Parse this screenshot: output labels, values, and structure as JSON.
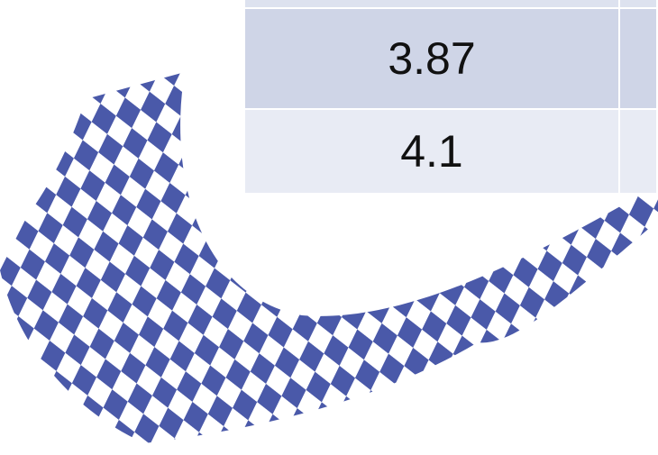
{
  "table": {
    "rows": [
      [
        "3.87"
      ],
      [
        "4.1"
      ]
    ]
  }
}
